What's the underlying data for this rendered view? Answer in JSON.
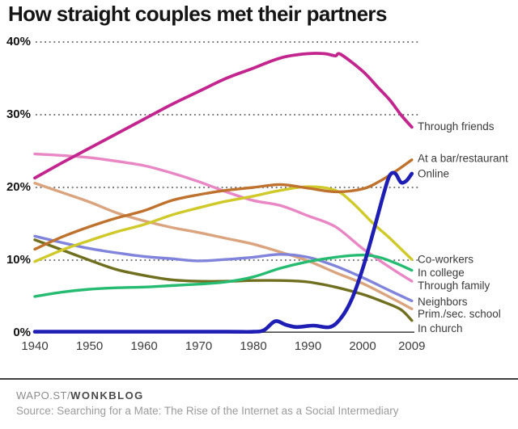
{
  "title": "How straight couples met their partners",
  "footer": {
    "brand_prefix": "WAPO.ST/",
    "brand_bold": "WONKBLOG",
    "source": "Source: Searching for a Mate: The Rise of the Internet as a Social Intermediary"
  },
  "axis_colors": {
    "grid_dots": "#4a4a4a",
    "axis_line": "#4c4c4c",
    "y_labels": "#141414",
    "x_labels": "#3c3c3c",
    "series_labels": "#3a3a3a"
  },
  "chart_data": {
    "type": "line",
    "title": "How straight couples met their partners",
    "xlabel": "",
    "ylabel": "",
    "xlim": [
      1940,
      2009
    ],
    "ylim": [
      0,
      40
    ],
    "grid": "dotted horizontal lines at 10/20/30/40",
    "legend_position": "labels at right edge of lines",
    "xticks": [
      {
        "value": 1940,
        "label": "1940"
      },
      {
        "value": 1950,
        "label": "1950"
      },
      {
        "value": 1960,
        "label": "1960"
      },
      {
        "value": 1970,
        "label": "1970"
      },
      {
        "value": 1980,
        "label": "1980"
      },
      {
        "value": 1990,
        "label": "1990"
      },
      {
        "value": 2000,
        "label": "2000"
      },
      {
        "value": 2009,
        "label": "2009"
      }
    ],
    "yticks": [
      {
        "value": 0,
        "label": "0%"
      },
      {
        "value": 10,
        "label": "10%"
      },
      {
        "value": 20,
        "label": "20%"
      },
      {
        "value": 30,
        "label": "30%"
      },
      {
        "value": 40,
        "label": "40%"
      }
    ],
    "series": [
      {
        "id": "prim-sec-school",
        "label": "Prim./sec. school",
        "color": "#daa47e",
        "width": 3.4,
        "label_pct": 2.5,
        "points": [
          [
            1940,
            20.6
          ],
          [
            1945,
            19.3
          ],
          [
            1950,
            18.0
          ],
          [
            1955,
            16.5
          ],
          [
            1960,
            15.4
          ],
          [
            1965,
            14.5
          ],
          [
            1970,
            13.8
          ],
          [
            1975,
            13.0
          ],
          [
            1980,
            12.2
          ],
          [
            1985,
            11.1
          ],
          [
            1990,
            9.9
          ],
          [
            1995,
            8.3
          ],
          [
            2000,
            6.8
          ],
          [
            2005,
            4.9
          ],
          [
            2009,
            3.3
          ]
        ]
      },
      {
        "id": "in-church",
        "label": "In church",
        "color": "#6f6f1f",
        "width": 3.4,
        "label_pct": 0.5,
        "points": [
          [
            1940,
            12.8
          ],
          [
            1945,
            11.4
          ],
          [
            1950,
            10.0
          ],
          [
            1955,
            8.7
          ],
          [
            1960,
            7.9
          ],
          [
            1965,
            7.3
          ],
          [
            1970,
            7.1
          ],
          [
            1975,
            7.1
          ],
          [
            1980,
            7.2
          ],
          [
            1985,
            7.2
          ],
          [
            1990,
            7.0
          ],
          [
            1995,
            6.3
          ],
          [
            2000,
            5.3
          ],
          [
            2004,
            4.2
          ],
          [
            2007,
            3.2
          ],
          [
            2009,
            1.7
          ]
        ]
      },
      {
        "id": "neighbors",
        "label": "Neighbors",
        "color": "#8084da",
        "width": 3.4,
        "label_pct": 4.2,
        "points": [
          [
            1940,
            13.3
          ],
          [
            1945,
            12.4
          ],
          [
            1950,
            11.6
          ],
          [
            1955,
            11.0
          ],
          [
            1960,
            10.5
          ],
          [
            1965,
            10.2
          ],
          [
            1970,
            9.9
          ],
          [
            1975,
            10.1
          ],
          [
            1980,
            10.4
          ],
          [
            1985,
            10.8
          ],
          [
            1990,
            10.4
          ],
          [
            1995,
            9.2
          ],
          [
            2000,
            7.6
          ],
          [
            2005,
            5.8
          ],
          [
            2009,
            4.4
          ]
        ]
      },
      {
        "id": "through-family",
        "label": "Through family",
        "color": "#e987c5",
        "width": 3.4,
        "label_pct": 6.4,
        "points": [
          [
            1940,
            24.6
          ],
          [
            1945,
            24.4
          ],
          [
            1950,
            24.1
          ],
          [
            1955,
            23.6
          ],
          [
            1960,
            23.0
          ],
          [
            1965,
            22.0
          ],
          [
            1970,
            20.8
          ],
          [
            1975,
            19.4
          ],
          [
            1980,
            18.2
          ],
          [
            1985,
            17.5
          ],
          [
            1990,
            16.1
          ],
          [
            1995,
            14.6
          ],
          [
            2000,
            11.6
          ],
          [
            2005,
            9.0
          ],
          [
            2009,
            7.1
          ]
        ]
      },
      {
        "id": "co-workers",
        "label": "Co-workers",
        "color": "#cfc92a",
        "width": 3.4,
        "label_pct": 10.0,
        "points": [
          [
            1940,
            9.8
          ],
          [
            1945,
            11.4
          ],
          [
            1950,
            12.7
          ],
          [
            1955,
            13.9
          ],
          [
            1960,
            14.9
          ],
          [
            1965,
            16.2
          ],
          [
            1970,
            17.2
          ],
          [
            1975,
            18.1
          ],
          [
            1980,
            18.8
          ],
          [
            1985,
            19.6
          ],
          [
            1990,
            20.1
          ],
          [
            1995,
            19.6
          ],
          [
            1998,
            18.0
          ],
          [
            2002,
            15.0
          ],
          [
            2005,
            13.0
          ],
          [
            2009,
            10.1
          ]
        ]
      },
      {
        "id": "at-bar-restaurant",
        "label": "At a bar/restaurant",
        "color": "#bf722d",
        "width": 3.4,
        "label_pct": 23.9,
        "points": [
          [
            1940,
            11.5
          ],
          [
            1945,
            13.2
          ],
          [
            1950,
            14.6
          ],
          [
            1955,
            15.8
          ],
          [
            1960,
            16.8
          ],
          [
            1965,
            18.2
          ],
          [
            1970,
            19.0
          ],
          [
            1975,
            19.6
          ],
          [
            1980,
            20.0
          ],
          [
            1985,
            20.4
          ],
          [
            1990,
            19.9
          ],
          [
            1995,
            19.4
          ],
          [
            2000,
            19.8
          ],
          [
            2003,
            20.8
          ],
          [
            2006,
            22.2
          ],
          [
            2009,
            23.8
          ]
        ]
      },
      {
        "id": "in-college",
        "label": "In college",
        "color": "#25bc72",
        "width": 3.4,
        "label_pct": 8.2,
        "points": [
          [
            1940,
            5.0
          ],
          [
            1945,
            5.6
          ],
          [
            1950,
            6.0
          ],
          [
            1955,
            6.2
          ],
          [
            1960,
            6.3
          ],
          [
            1965,
            6.5
          ],
          [
            1970,
            6.7
          ],
          [
            1975,
            7.0
          ],
          [
            1980,
            7.7
          ],
          [
            1985,
            8.9
          ],
          [
            1990,
            9.8
          ],
          [
            1995,
            10.4
          ],
          [
            2000,
            10.7
          ],
          [
            2003,
            10.4
          ],
          [
            2006,
            9.6
          ],
          [
            2009,
            8.6
          ]
        ]
      },
      {
        "id": "through-friends",
        "label": "Through friends",
        "color": "#c2268e",
        "width": 3.8,
        "label_pct": 28.3,
        "points": [
          [
            1940,
            21.3
          ],
          [
            1945,
            23.4
          ],
          [
            1950,
            25.4
          ],
          [
            1955,
            27.4
          ],
          [
            1960,
            29.4
          ],
          [
            1965,
            31.4
          ],
          [
            1970,
            33.2
          ],
          [
            1975,
            35.0
          ],
          [
            1980,
            36.4
          ],
          [
            1983,
            37.3
          ],
          [
            1986,
            38.0
          ],
          [
            1990,
            38.4
          ],
          [
            1993,
            38.4
          ],
          [
            1995,
            38.1
          ],
          [
            1996,
            38.3
          ],
          [
            2000,
            36.0
          ],
          [
            2003,
            33.6
          ],
          [
            2005,
            32.0
          ],
          [
            2007,
            30.0
          ],
          [
            2009,
            28.3
          ]
        ]
      },
      {
        "id": "online",
        "label": "Online",
        "color": "#1e1eb4",
        "width": 4.6,
        "label_pct": 21.8,
        "points": [
          [
            1940,
            0.15
          ],
          [
            1960,
            0.15
          ],
          [
            1975,
            0.15
          ],
          [
            1980,
            0.15
          ],
          [
            1982,
            0.4
          ],
          [
            1984,
            1.6
          ],
          [
            1986,
            1.1
          ],
          [
            1988,
            0.8
          ],
          [
            1991,
            1.0
          ],
          [
            1994,
            0.8
          ],
          [
            1996,
            2.0
          ],
          [
            1998,
            4.6
          ],
          [
            2000,
            8.8
          ],
          [
            2002,
            14.0
          ],
          [
            2004,
            19.5
          ],
          [
            2005,
            21.7
          ],
          [
            2006,
            21.9
          ],
          [
            2007,
            20.7
          ],
          [
            2008,
            20.9
          ],
          [
            2009,
            21.9
          ]
        ]
      }
    ]
  }
}
